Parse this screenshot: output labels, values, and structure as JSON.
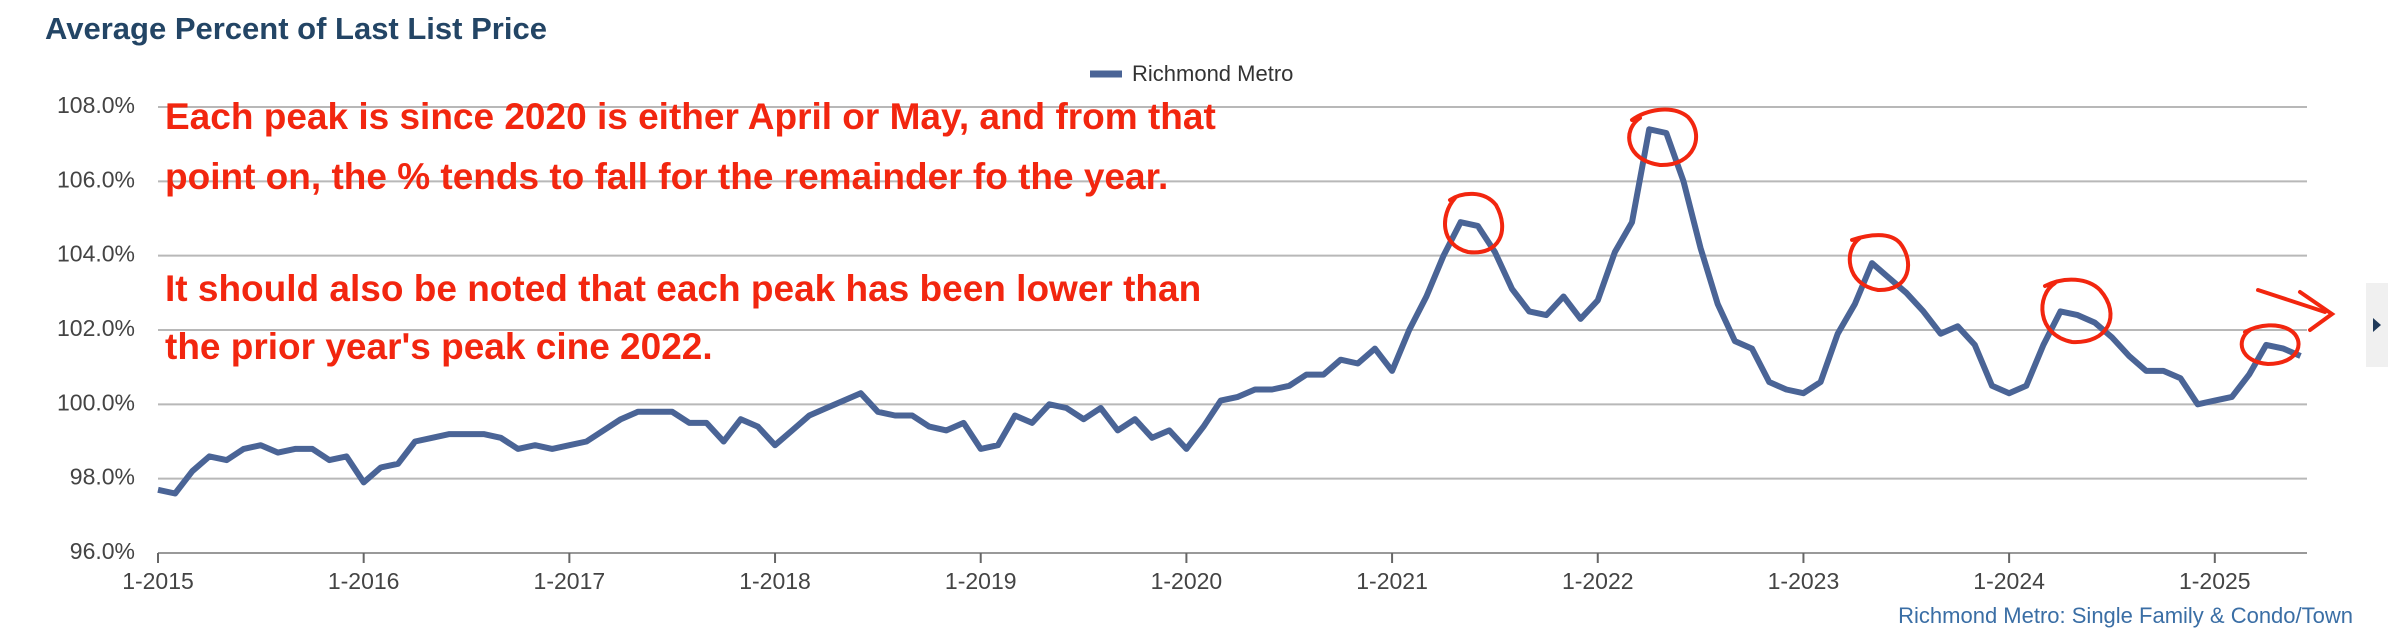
{
  "chart_data": {
    "type": "line",
    "title": "Average Percent of Last List Price",
    "source": "Richmond Metro: Single Family & Condo/Town",
    "annotations": [
      "Each peak is since 2020 is either April or May, and from that",
      "point on, the % tends to fall for the remainder fo the year.",
      "It should also be noted that each peak has been lower than",
      "the prior year's peak cine 2022."
    ],
    "categories": [
      "1-2015",
      null,
      null,
      null,
      null,
      null,
      null,
      null,
      null,
      null,
      null,
      null,
      "1-2016",
      null,
      null,
      null,
      null,
      null,
      null,
      null,
      null,
      null,
      null,
      null,
      "1-2017",
      null,
      null,
      null,
      null,
      null,
      null,
      null,
      null,
      null,
      null,
      null,
      "1-2018",
      null,
      null,
      null,
      null,
      null,
      null,
      null,
      null,
      null,
      null,
      null,
      "1-2019",
      null,
      null,
      null,
      null,
      null,
      null,
      null,
      null,
      null,
      null,
      null,
      "1-2020",
      null,
      null,
      null,
      null,
      null,
      null,
      null,
      null,
      null,
      null,
      null,
      "1-2021",
      null,
      null,
      null,
      null,
      null,
      null,
      null,
      null,
      null,
      null,
      null,
      "1-2022",
      null,
      null,
      null,
      null,
      null,
      null,
      null,
      null,
      null,
      null,
      null,
      "1-2023",
      null,
      null,
      null,
      null,
      null,
      null,
      null,
      null,
      null,
      null,
      null,
      "1-2024",
      null,
      null,
      null,
      null,
      null,
      null,
      null,
      null,
      null,
      null,
      null,
      "1-2025",
      null,
      null,
      null,
      null,
      null
    ],
    "series": [
      {
        "name": "Richmond Metro",
        "color": "#4a6496",
        "values": [
          97.7,
          97.6,
          98.2,
          98.6,
          98.5,
          98.8,
          98.9,
          98.7,
          98.8,
          98.8,
          98.5,
          98.6,
          97.9,
          98.3,
          98.4,
          99.0,
          99.1,
          99.2,
          99.2,
          99.2,
          99.1,
          98.8,
          98.9,
          98.8,
          98.9,
          99.0,
          99.3,
          99.6,
          99.8,
          99.8,
          99.8,
          99.5,
          99.5,
          99.0,
          99.6,
          99.4,
          98.9,
          99.3,
          99.7,
          99.9,
          100.1,
          100.3,
          99.8,
          99.7,
          99.7,
          99.4,
          99.3,
          99.5,
          98.8,
          98.9,
          99.7,
          99.5,
          100.0,
          99.9,
          99.6,
          99.9,
          99.3,
          99.6,
          99.1,
          99.3,
          98.8,
          99.4,
          100.1,
          100.2,
          100.4,
          100.4,
          100.5,
          100.8,
          100.8,
          101.2,
          101.1,
          101.5,
          100.9,
          102.0,
          102.9,
          104.0,
          104.9,
          104.8,
          104.1,
          103.1,
          102.5,
          102.4,
          102.9,
          102.3,
          102.8,
          104.1,
          104.9,
          107.4,
          107.3,
          106.0,
          104.2,
          102.7,
          101.7,
          101.5,
          100.6,
          100.4,
          100.3,
          100.6,
          101.9,
          102.7,
          103.8,
          103.4,
          103.0,
          102.5,
          101.9,
          102.1,
          101.6,
          100.5,
          100.3,
          100.5,
          101.6,
          102.5,
          102.4,
          102.2,
          101.8,
          101.3,
          100.9,
          100.9,
          100.7,
          100.0,
          100.1,
          100.2,
          100.8,
          101.6,
          101.5,
          101.3
        ]
      }
    ],
    "ylim": [
      96,
      108
    ],
    "yticks": [
      {
        "value": 96,
        "label": "96.0%"
      },
      {
        "value": 98,
        "label": "98.0%"
      },
      {
        "value": 100,
        "label": "100.0%"
      },
      {
        "value": 102,
        "label": "102.0%"
      },
      {
        "value": 104,
        "label": "104.0%"
      },
      {
        "value": 106,
        "label": "106.0%"
      },
      {
        "value": 108,
        "label": "108.0%"
      }
    ],
    "grid": true
  }
}
